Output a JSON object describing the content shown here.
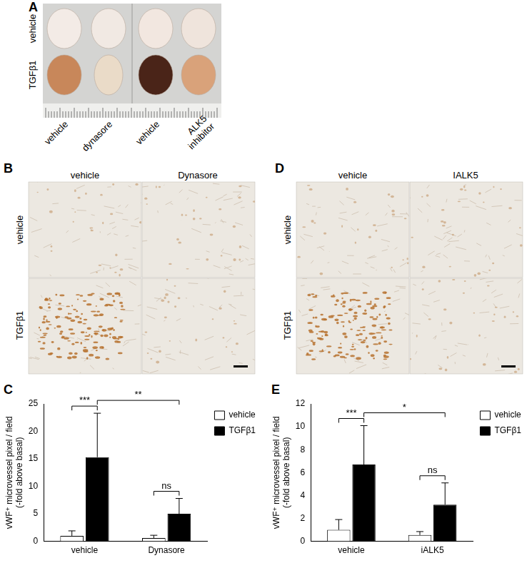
{
  "panels": [
    {
      "letter": "A",
      "rows": [
        "vehicle",
        "TGFβ1"
      ],
      "columns": [
        "vehicle",
        "dynasore",
        "vehicle",
        "ALK5 inhibitor"
      ]
    },
    {
      "letter": "B",
      "rows": [
        "vehicle",
        "TGFβ1"
      ],
      "columns": [
        "vehicle",
        "Dynasore"
      ]
    },
    {
      "letter": "D",
      "rows": [
        "vehicle",
        "TGFβ1"
      ],
      "columns": [
        "vehicle",
        "IALK5"
      ]
    }
  ],
  "chart_data": [
    {
      "panel": "C",
      "type": "bar",
      "y_label": [
        "vWF⁺ microvessel pixel / field",
        "(-fold above basal)"
      ],
      "categories": [
        "vehicle",
        "Dynasore"
      ],
      "series": [
        {
          "name": "vehicle",
          "color": "#ffffff",
          "values": [
            1.0,
            0.6
          ],
          "errors": [
            0.9,
            0.5
          ]
        },
        {
          "name": "TGFβ1",
          "color": "#000000",
          "values": [
            15.3,
            5.0
          ],
          "errors": [
            8.0,
            2.8
          ]
        }
      ],
      "ylim": [
        0,
        25
      ],
      "yticks": [
        0,
        5,
        10,
        15,
        20,
        25
      ],
      "grid": false,
      "legend": "right",
      "annotations": [
        {
          "text": "***",
          "from": [
            0,
            0
          ],
          "to": [
            1,
            0
          ]
        },
        {
          "text": "**",
          "from": [
            1,
            0
          ],
          "to": [
            1,
            1
          ]
        },
        {
          "text": "ns",
          "from": [
            0,
            1
          ],
          "to": [
            1,
            1
          ]
        }
      ]
    },
    {
      "panel": "E",
      "type": "bar",
      "y_label": [
        "vWF⁺ microvessel pixel / field",
        "(-fold above basal)"
      ],
      "categories": [
        "vehicle",
        "iALK5"
      ],
      "series": [
        {
          "name": "vehicle",
          "color": "#ffffff",
          "values": [
            1.0,
            0.55
          ],
          "errors": [
            0.9,
            0.3
          ]
        },
        {
          "name": "TGFβ1",
          "color": "#000000",
          "values": [
            6.7,
            3.2
          ],
          "errors": [
            3.4,
            1.9
          ]
        }
      ],
      "ylim": [
        0,
        12
      ],
      "yticks": [
        0,
        2,
        4,
        6,
        8,
        10,
        12
      ],
      "grid": false,
      "legend": "right",
      "annotations": [
        {
          "text": "***",
          "from": [
            0,
            0
          ],
          "to": [
            1,
            0
          ]
        },
        {
          "text": "*",
          "from": [
            1,
            0
          ],
          "to": [
            1,
            1
          ]
        },
        {
          "text": "ns",
          "from": [
            0,
            1
          ],
          "to": [
            1,
            1
          ]
        }
      ]
    }
  ]
}
